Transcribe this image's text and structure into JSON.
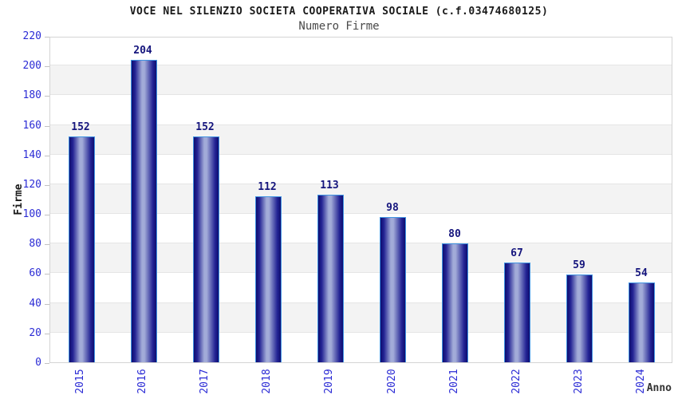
{
  "chart_data": {
    "type": "bar",
    "title": "VOCE NEL SILENZIO SOCIETA COOPERATIVA SOCIALE (c.f.03474680125)",
    "subtitle": "Numero Firme",
    "xlabel": "Anno",
    "ylabel": "Firme",
    "categories": [
      "2015",
      "2016",
      "2017",
      "2018",
      "2019",
      "2020",
      "2021",
      "2022",
      "2023",
      "2024"
    ],
    "values": [
      152,
      204,
      152,
      112,
      113,
      98,
      80,
      67,
      59,
      54
    ],
    "ylim": [
      0,
      220
    ],
    "yticks": [
      0,
      20,
      40,
      60,
      80,
      100,
      120,
      140,
      160,
      180,
      200,
      220
    ],
    "legend": "none",
    "grid": "horizontal-alternating-bands",
    "colors": {
      "bar_dark": "#0e0e70",
      "bar_mid": "#a2abd8",
      "bar_border": "#3f93e2",
      "tick_label": "#2b2bd5",
      "value_label": "#15157d",
      "band": "#f3f3f3",
      "gridline": "#e5e5e5",
      "plot_border": "#d4d4d4",
      "tick_mark": "#c2c2c2",
      "title": "#1a1a1a",
      "subtitle": "#4a4a4a"
    }
  }
}
